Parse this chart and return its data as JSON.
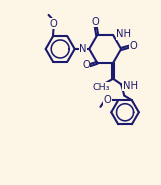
{
  "background_color": "#fdf5e6",
  "bond_color": "#1a1a6e",
  "text_color": "#1a1a6e",
  "line_width": 1.5,
  "dbo": 0.065,
  "figsize": [
    1.61,
    1.85
  ],
  "dpi": 100,
  "xlim": [
    -1,
    10
  ],
  "ylim": [
    0,
    12
  ]
}
